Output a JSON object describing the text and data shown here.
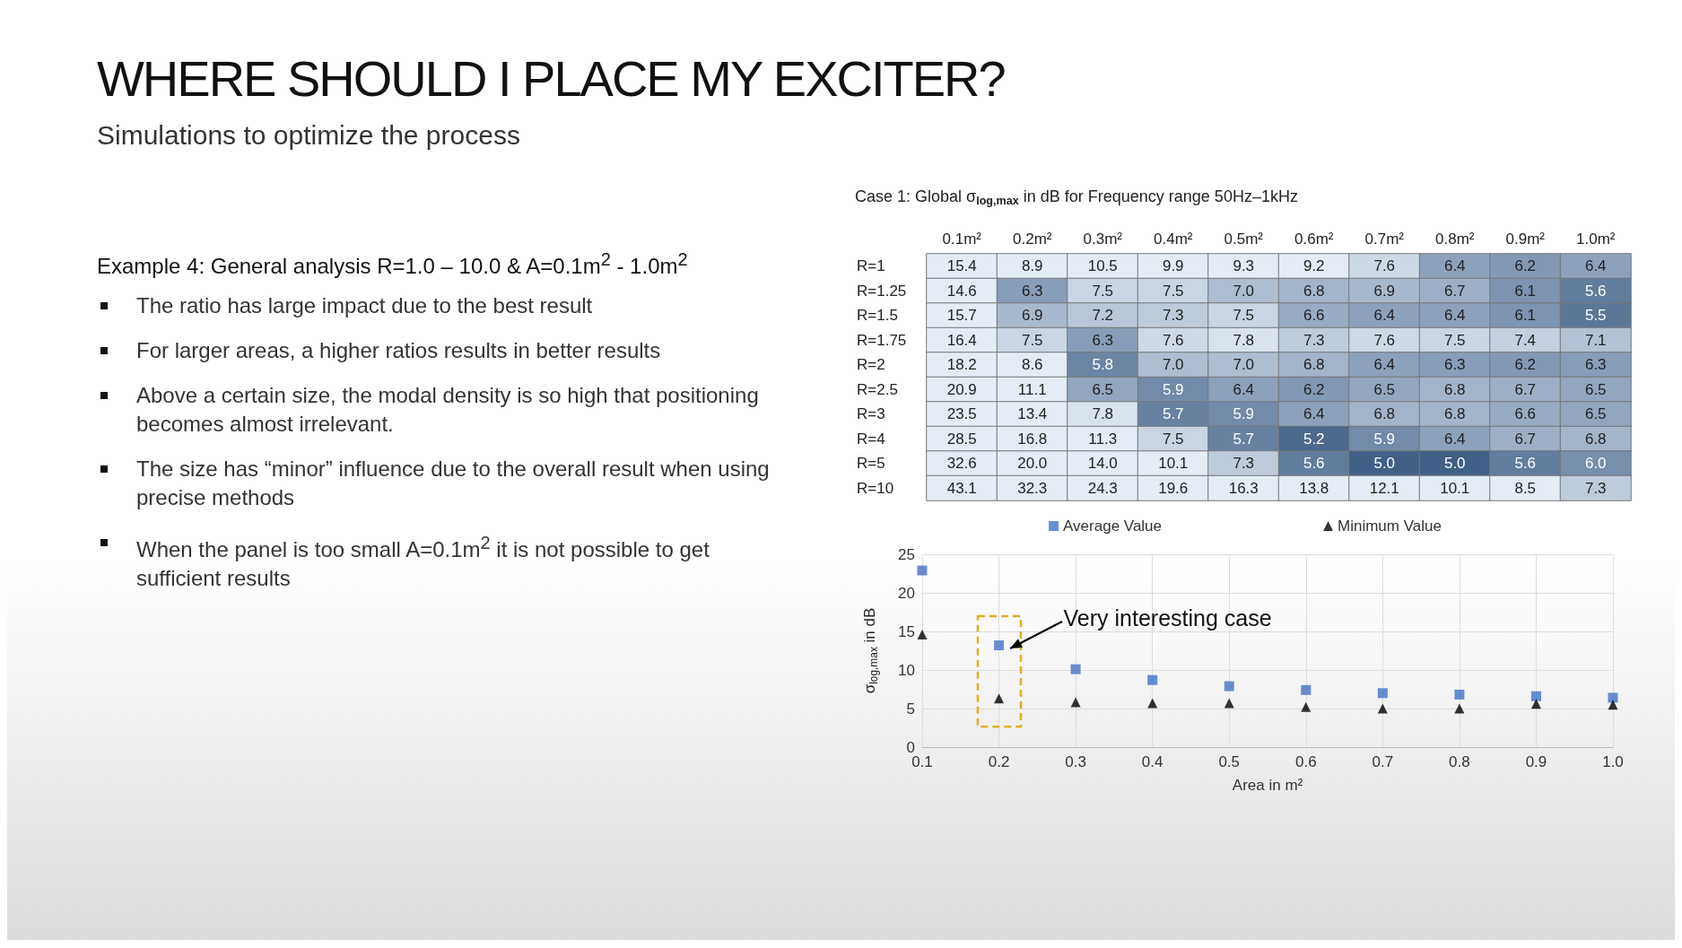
{
  "chart_data": [
    {
      "type": "other",
      "title": "WHERE SHOULD I PLACE MY EXCITER?",
      "subtitle": "Simulations to optimize the process",
      "annotations": [
        "Example 4: General analysis R=1.0 – 10.0 & A=0.1m$^{2}$ - 1.0m$^{2}$",
        "The ratio has large impact due to the best result",
        "For larger areas, a higher ratios results in better results",
        "Above a certain size, the modal density is so high that positioning becomes almost irrelevant.",
        "The size has “minor” influence due to the overall result when using precise methods",
        "When the panel is too small A=0.1m$^{2}$ it is not possible to get sufficient results"
      ]
    },
    {
      "type": "heatmap",
      "title": "Case 1: Global σ$_{log,max}$ in dB for Frequency range 50Hz–1kHz",
      "data_labels": true,
      "categories": [
        "0.1m²",
        "0.2m²",
        "0.3m²",
        "0.4m²",
        "0.5m²",
        "0.6m²",
        "0.7m²",
        "0.8m²",
        "0.9m²",
        "1.0m²"
      ],
      "y_categories": [
        "R=1",
        "R=1.25",
        "R=1.5",
        "R=1.75",
        "R=2",
        "R=2.5",
        "R=3",
        "R=4",
        "R=5",
        "R=10"
      ],
      "cells": [
        [
          15.4,
          8.9,
          10.5,
          9.9,
          9.3,
          9.2,
          7.6,
          6.4,
          6.2,
          6.4
        ],
        [
          14.6,
          6.3,
          7.5,
          7.5,
          7.0,
          6.8,
          6.9,
          6.7,
          6.1,
          5.6
        ],
        [
          15.7,
          6.9,
          7.2,
          7.3,
          7.5,
          6.6,
          6.4,
          6.4,
          6.1,
          5.5
        ],
        [
          16.4,
          7.5,
          6.3,
          7.6,
          7.8,
          7.3,
          7.6,
          7.5,
          7.4,
          7.1
        ],
        [
          18.2,
          8.6,
          5.8,
          7.0,
          7.0,
          6.8,
          6.4,
          6.3,
          6.2,
          6.3
        ],
        [
          20.9,
          11.1,
          6.5,
          5.9,
          6.4,
          6.2,
          6.5,
          6.8,
          6.7,
          6.5
        ],
        [
          23.5,
          13.4,
          7.8,
          5.7,
          5.9,
          6.4,
          6.8,
          6.8,
          6.6,
          6.5
        ],
        [
          28.5,
          16.8,
          11.3,
          7.5,
          5.7,
          5.2,
          5.9,
          6.4,
          6.7,
          6.8
        ],
        [
          32.6,
          20.0,
          14.0,
          10.1,
          7.3,
          5.6,
          5.0,
          5.0,
          5.6,
          6.0
        ],
        [
          43.1,
          32.3,
          24.3,
          19.6,
          16.3,
          13.8,
          12.1,
          10.1,
          8.5,
          7.3
        ]
      ],
      "cell_labels": [
        [
          "15.4",
          "8.9",
          "10.5",
          "9.9",
          "9.3",
          "9.2",
          "7.6",
          "6.4",
          "6.2",
          "6.4"
        ],
        [
          "14.6",
          "6.3",
          "7.5",
          "7.5",
          "7.0",
          "6.8",
          "6.9",
          "6.7",
          "6.1",
          "5.6"
        ],
        [
          "15.7",
          "6.9",
          "7.2",
          "7.3",
          "7.5",
          "6.6",
          "6.4",
          "6.4",
          "6.1",
          "5.5"
        ],
        [
          "16.4",
          "7.5",
          "6.3",
          "7.6",
          "7.8",
          "7.3",
          "7.6",
          "7.5",
          "7.4",
          "7.1"
        ],
        [
          "18.2",
          "8.6",
          "5.8",
          "7.0",
          "7.0",
          "6.8",
          "6.4",
          "6.3",
          "6.2",
          "6.3"
        ],
        [
          "20.9",
          "11.1",
          "6.5",
          "5.9",
          "6.4",
          "6.2",
          "6.5",
          "6.8",
          "6.7",
          "6.5"
        ],
        [
          "23.5",
          "13.4",
          "7.8",
          "5.7",
          "5.9",
          "6.4",
          "6.8",
          "6.8",
          "6.6",
          "6.5"
        ],
        [
          "28.5",
          "16.8",
          "11.3",
          "7.5",
          "5.7",
          "5.2",
          "5.9",
          "6.4",
          "6.7",
          "6.8"
        ],
        [
          "32.6",
          "20.0",
          "14.0",
          "10.1",
          "7.3",
          "5.6",
          "5.0",
          "5.0",
          "5.6",
          "6.0"
        ],
        [
          "43.1",
          "32.3",
          "24.3",
          "19.6",
          "16.3",
          "13.8",
          "12.1",
          "10.1",
          "8.5",
          "7.3"
        ]
      ]
    },
    {
      "type": "scatter",
      "xlabel": "Area in m²",
      "ylabel": "σ$_{log,max}$ in dB",
      "legend": "top",
      "grid": true,
      "x": [
        0.1,
        0.2,
        0.3,
        0.4,
        0.5,
        0.6,
        0.7,
        0.8,
        0.9,
        1.0
      ],
      "xlim": [
        0.1,
        1.0
      ],
      "xticks": [
        0.1,
        0.2,
        0.3,
        0.4,
        0.5,
        0.6,
        0.7,
        0.8,
        0.9,
        {
          "value": 1.0,
          "label": "1.0"
        }
      ],
      "ylim": [
        0,
        25
      ],
      "yticks": [
        0,
        5,
        10,
        15,
        20,
        25
      ],
      "annotations": [
        {
          "text": "Very interesting case",
          "x": 0.2,
          "y": 13.2
        }
      ],
      "series": [
        {
          "name": "Average Value",
          "color": "#4472c4",
          "marker": "square",
          "values": [
            22.9,
            13.2,
            10.1,
            8.7,
            7.9,
            7.4,
            7.0,
            6.8,
            6.6,
            6.4
          ]
        },
        {
          "name": "Minimum Value",
          "color": "#000000",
          "marker": "triangle",
          "values": [
            14.6,
            6.3,
            5.8,
            5.7,
            5.7,
            5.2,
            5.0,
            5.0,
            5.6,
            5.5
          ]
        }
      ]
    }
  ]
}
